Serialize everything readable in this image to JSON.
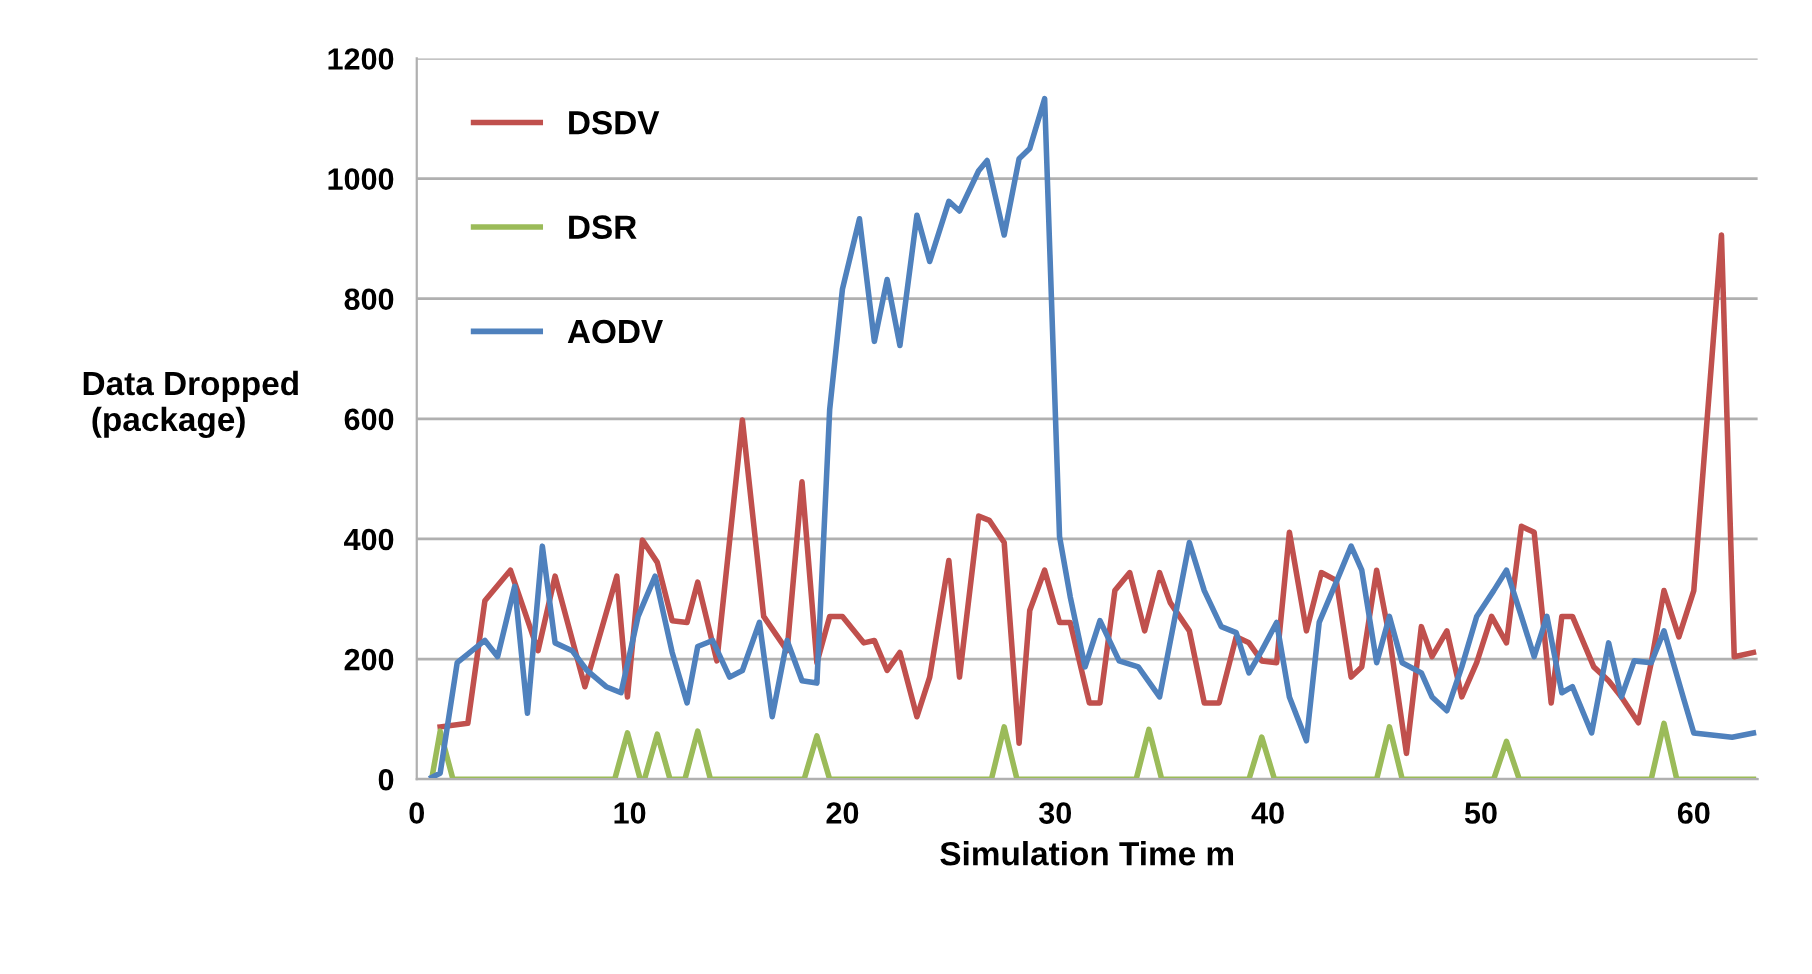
{
  "chart_data": {
    "type": "line",
    "xlabel": "Simulation Time m",
    "ylabel": "Data Dropped\n (package)",
    "xlim": [
      0,
      63
    ],
    "xticks": [
      0,
      10,
      20,
      30,
      40,
      50,
      60
    ],
    "ylim": [
      0,
      1200
    ],
    "yticks": [
      0,
      200,
      400,
      600,
      800,
      1000,
      1200
    ],
    "grid": "y",
    "legend": "top left",
    "marker": "none",
    "line_style": "solid",
    "series": [
      {
        "name": "DSDV",
        "color": "#c0504d",
        "x": [
          1.1,
          2.4,
          3.2,
          4.4,
          5.7,
          6.5,
          7.9,
          9.4,
          9.9,
          10.6,
          11.3,
          12.0,
          12.7,
          13.2,
          14.1,
          15.3,
          16.3,
          17.4,
          18.1,
          18.8,
          19.4,
          20.0,
          21.0,
          21.5,
          22.1,
          22.7,
          23.5,
          24.1,
          25.0,
          25.5,
          26.4,
          26.9,
          27.6,
          28.3,
          28.8,
          29.5,
          30.2,
          30.7,
          31.6,
          32.1,
          32.8,
          33.5,
          34.2,
          34.9,
          35.4,
          36.3,
          37.0,
          37.7,
          38.5,
          39.1,
          39.7,
          40.4,
          41.0,
          41.8,
          42.5,
          43.2,
          43.9,
          44.4,
          45.1,
          45.7,
          46.5,
          47.2,
          47.7,
          48.4,
          49.1,
          49.8,
          50.5,
          51.2,
          51.9,
          52.5,
          53.3,
          53.8,
          54.3,
          55.3,
          56.0,
          56.6,
          57.4,
          58.0,
          58.6,
          59.3,
          60.0,
          61.3,
          61.9,
          62.8
        ],
        "values": [
          87,
          93,
          297,
          348,
          214,
          338,
          154,
          338,
          137,
          398,
          361,
          264,
          261,
          328,
          197,
          598,
          271,
          214,
          495,
          194,
          271,
          271,
          227,
          231,
          181,
          211,
          104,
          170,
          364,
          170,
          438,
          431,
          394,
          60,
          281,
          348,
          261,
          261,
          127,
          127,
          314,
          344,
          247,
          344,
          294,
          247,
          127,
          127,
          237,
          227,
          197,
          194,
          411,
          247,
          344,
          331,
          170,
          187,
          348,
          237,
          43,
          254,
          204,
          247,
          137,
          194,
          271,
          227,
          421,
          411,
          127,
          271,
          271,
          187,
          164,
          137,
          94,
          194,
          314,
          237,
          314,
          906,
          204,
          211
        ]
      },
      {
        "name": "DSR",
        "color": "#9bbb59",
        "x": [
          0.7,
          1.1,
          1.7,
          9.3,
          9.9,
          10.5,
          10.7,
          11.3,
          11.9,
          12.6,
          13.2,
          13.8,
          18.2,
          18.8,
          19.4,
          27.0,
          27.6,
          28.2,
          33.8,
          34.4,
          35.0,
          39.1,
          39.7,
          40.3,
          45.1,
          45.7,
          46.3,
          50.6,
          51.2,
          51.8,
          58.0,
          58.6,
          59.2,
          62.8
        ],
        "values": [
          0,
          80,
          0,
          0,
          77,
          0,
          0,
          75,
          0,
          0,
          80,
          0,
          0,
          72,
          0,
          0,
          87,
          0,
          0,
          83,
          0,
          0,
          70,
          0,
          0,
          87,
          0,
          0,
          63,
          0,
          0,
          93,
          0,
          0
        ]
      },
      {
        "name": "AODV",
        "color": "#4f81bd",
        "x": [
          0.7,
          1.1,
          1.9,
          2.6,
          3.2,
          3.8,
          4.6,
          5.2,
          5.9,
          6.5,
          7.3,
          8.0,
          8.9,
          9.6,
          10.4,
          11.2,
          12.0,
          12.7,
          13.2,
          13.9,
          14.7,
          15.3,
          16.1,
          16.7,
          17.4,
          18.1,
          18.8,
          19.4,
          20.0,
          20.8,
          21.5,
          22.1,
          22.7,
          23.5,
          24.1,
          25.0,
          25.5,
          26.4,
          26.8,
          27.6,
          28.3,
          28.8,
          29.5,
          30.2,
          30.7,
          31.4,
          32.1,
          33.0,
          33.9,
          34.9,
          36.3,
          37.0,
          37.8,
          38.5,
          39.1,
          39.7,
          40.4,
          41.0,
          41.8,
          42.4,
          43.2,
          43.9,
          44.4,
          45.1,
          45.7,
          46.3,
          47.2,
          47.7,
          48.4,
          49.1,
          49.8,
          50.6,
          51.2,
          51.9,
          52.5,
          53.1,
          53.8,
          54.3,
          55.2,
          56.0,
          56.6,
          57.2,
          58.0,
          58.6,
          59.5,
          60.0,
          61.8,
          62.8
        ],
        "values": [
          3,
          10,
          194,
          214,
          231,
          204,
          321,
          110,
          388,
          227,
          214,
          181,
          154,
          144,
          271,
          338,
          211,
          127,
          221,
          231,
          170,
          181,
          261,
          104,
          231,
          164,
          160,
          615,
          816,
          933,
          729,
          832,
          722,
          939,
          862,
          962,
          946,
          1013,
          1030,
          906,
          1033,
          1050,
          1133,
          404,
          304,
          187,
          264,
          197,
          187,
          137,
          394,
          314,
          254,
          244,
          177,
          214,
          261,
          137,
          64,
          261,
          328,
          388,
          348,
          194,
          271,
          194,
          177,
          137,
          114,
          187,
          271,
          314,
          348,
          271,
          204,
          271,
          144,
          154,
          77,
          227,
          137,
          197,
          194,
          247,
          137,
          77,
          70,
          77
        ]
      }
    ]
  }
}
